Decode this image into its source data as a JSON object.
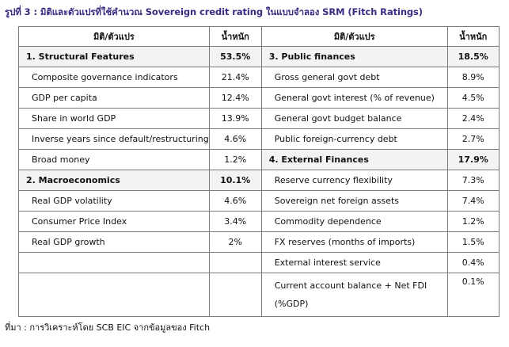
{
  "title": "รูปที่ 3 : มิติและตัวแปรที่ใช้คำนวณ Sovereign credit rating ในแบบจำลอง SRM (Fitch Ratings)",
  "headers": {
    "left_dim": "มิติ/ตัวแปร",
    "left_weight": "น้ำหนัก",
    "right_dim": "มิติ/ตัวแปร",
    "right_weight": "น้ำหนัก"
  },
  "left": [
    {
      "label": "1. Structural Features",
      "value": "53.5%",
      "section": true
    },
    {
      "label": "Composite governance indicators",
      "value": "21.4%"
    },
    {
      "label": "GDP per capita",
      "value": "12.4%"
    },
    {
      "label": "Share in world GDP",
      "value": "13.9%"
    },
    {
      "label": "Inverse years since default/restructuring",
      "value": "4.6%"
    },
    {
      "label": "Broad money",
      "value": "1.2%"
    },
    {
      "label": "2. Macroeconomics",
      "value": "10.1%",
      "section": true
    },
    {
      "label": "Real GDP volatility",
      "value": "4.6%"
    },
    {
      "label": "Consumer Price Index",
      "value": "3.4%"
    },
    {
      "label": "Real GDP growth",
      "value": "2%"
    },
    {
      "label": "",
      "value": ""
    },
    {
      "label": "",
      "value": ""
    }
  ],
  "right": [
    {
      "label": "3. Public finances",
      "value": "18.5%",
      "section": true
    },
    {
      "label": "Gross general govt debt",
      "value": "8.9%"
    },
    {
      "label": "General govt interest (% of revenue)",
      "value": "4.5%"
    },
    {
      "label": "General govt budget balance",
      "value": "2.4%"
    },
    {
      "label": "Public foreign-currency debt",
      "value": "2.7%"
    },
    {
      "label": "4. External Finances",
      "value": "17.9%",
      "section": true
    },
    {
      "label": "Reserve currency flexibility",
      "value": "7.3%"
    },
    {
      "label": "Sovereign net foreign assets",
      "value": "7.4%"
    },
    {
      "label": "Commodity dependence",
      "value": "1.2%"
    },
    {
      "label": "FX reserves (months of imports)",
      "value": "1.5%"
    },
    {
      "label": "External interest service",
      "value": "0.4%"
    },
    {
      "label": "Current account balance + Net FDI (%GDP)",
      "value": "0.1%"
    }
  ],
  "footer": "ที่มา : การวิเคราะห์โดย SCB EIC จากข้อมูลของ Fitch"
}
